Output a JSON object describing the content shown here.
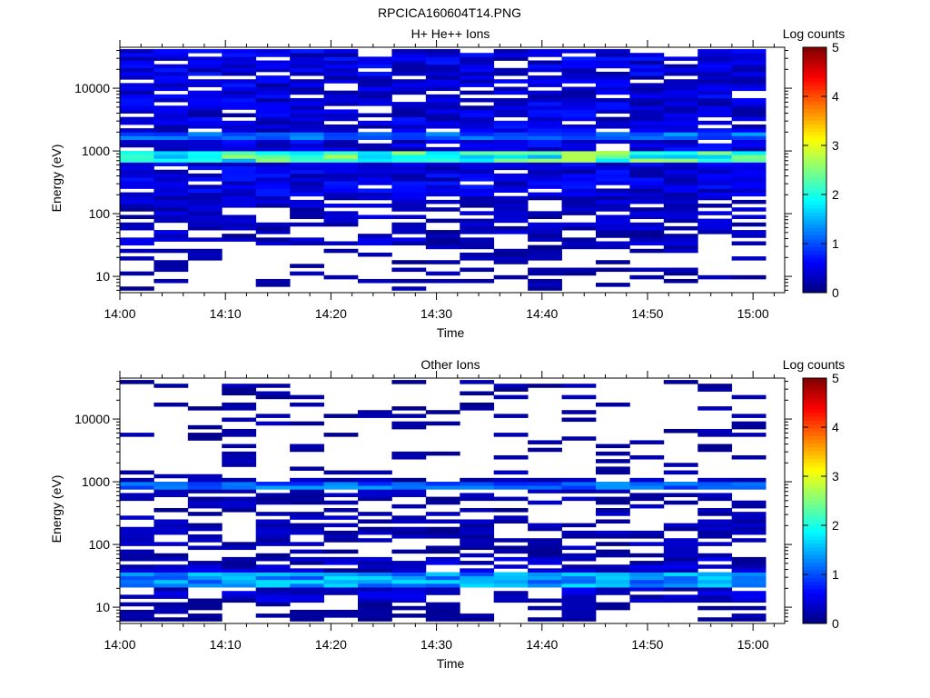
{
  "figure_title": "RPCICA160604T14.PNG",
  "chart_data": [
    {
      "type": "heatmap",
      "title": "H+ He++ Ions",
      "xlabel": "Time",
      "ylabel": "Energy (eV)",
      "x_ticks": [
        "14:00",
        "14:10",
        "14:20",
        "14:30",
        "14:40",
        "14:50",
        "15:00"
      ],
      "y_ticks": [
        "10",
        "100",
        "1000",
        "10000"
      ],
      "y_scale": "log",
      "y_range_eV": [
        5.5,
        45000
      ],
      "x_range": [
        "14:00",
        "15:03"
      ],
      "colorbar": {
        "label": "Log counts",
        "range": [
          0,
          5
        ],
        "ticks": [
          "0",
          "1",
          "2",
          "3",
          "4",
          "5"
        ],
        "colormap": "jet"
      },
      "n_time_bins": 19,
      "n_energy_bins": 64,
      "dominant_band_eV": [
        700,
        1000
      ],
      "dominant_band_log_counts": 2.5,
      "secondary_band_eV": [
        1600,
        2000
      ],
      "secondary_band_log_counts": 1.3
    },
    {
      "type": "heatmap",
      "title": "Other Ions",
      "xlabel": "Time",
      "ylabel": "Energy (eV)",
      "x_ticks": [
        "14:00",
        "14:10",
        "14:20",
        "14:30",
        "14:40",
        "14:50",
        "15:00"
      ],
      "y_ticks": [
        "10",
        "100",
        "1000",
        "10000"
      ],
      "y_scale": "log",
      "y_range_eV": [
        5.5,
        45000
      ],
      "x_range": [
        "14:00",
        "15:03"
      ],
      "colorbar": {
        "label": "Log counts",
        "range": [
          0,
          5
        ],
        "ticks": [
          "0",
          "1",
          "2",
          "3",
          "4",
          "5"
        ],
        "colormap": "jet"
      },
      "n_time_bins": 19,
      "n_energy_bins": 64,
      "dominant_band_eV": [
        780,
        1000
      ],
      "dominant_band_log_counts": 1.3,
      "secondary_band_eV": [
        20,
        35
      ],
      "secondary_band_log_counts": 1.6
    }
  ]
}
